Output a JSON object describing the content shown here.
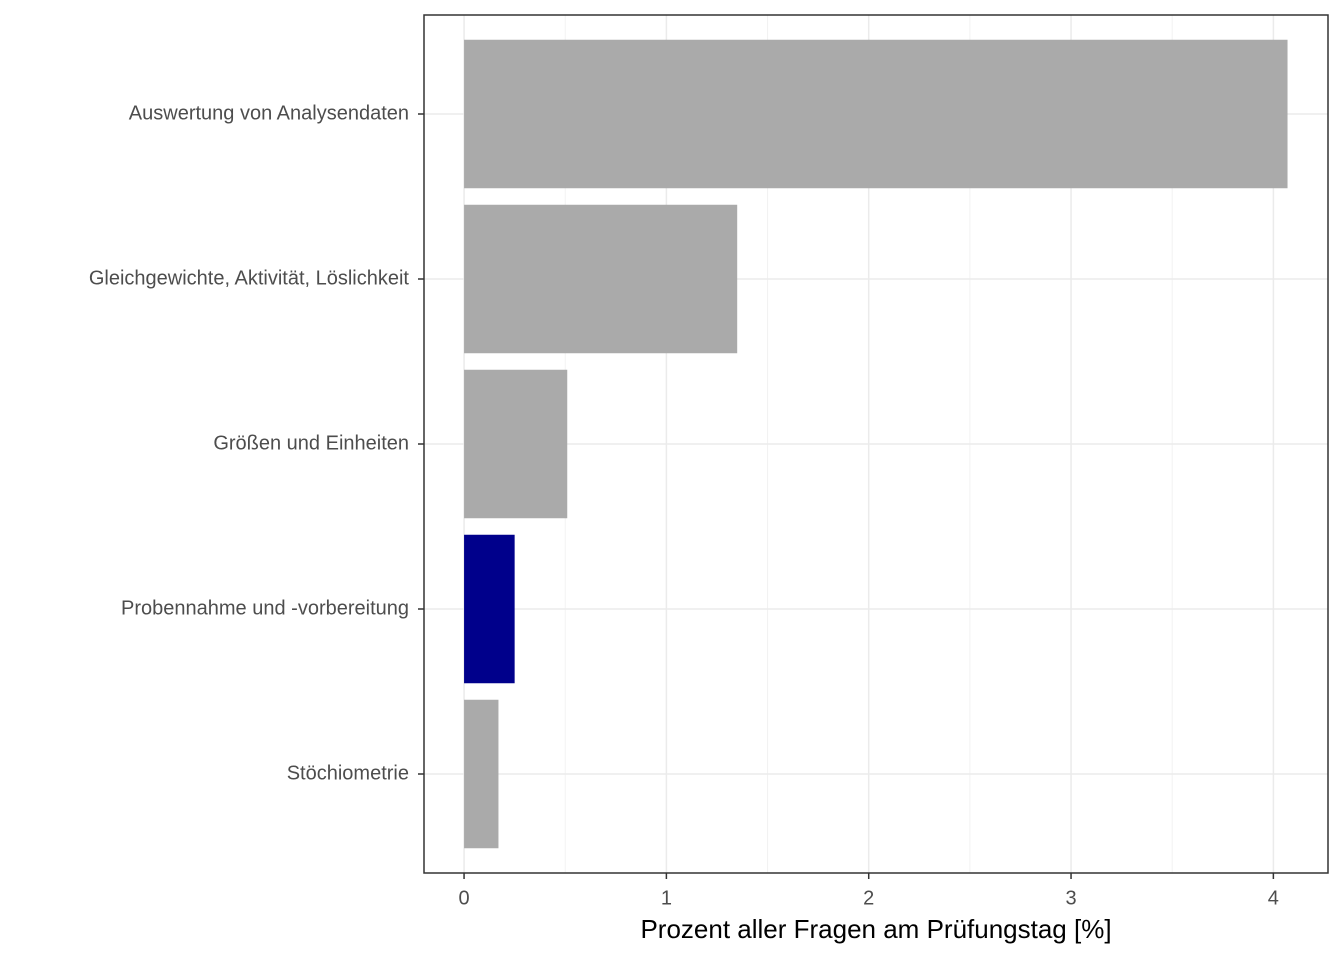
{
  "chart_data": {
    "type": "barh",
    "categories": [
      "Auswertung von Analysendaten",
      "Gleichgewichte, Aktivität, Löslichkeit",
      "Größen und Einheiten",
      "Probennahme und -vorbereitung",
      "Stöchiometrie"
    ],
    "values": [
      4.07,
      1.35,
      0.51,
      0.25,
      0.17
    ],
    "colors": [
      "#aaaaaa",
      "#aaaaaa",
      "#aaaaaa",
      "#00008b",
      "#aaaaaa"
    ],
    "xlabel": "Prozent aller Fragen am Prüfungstag [%]",
    "xlim": [
      -0.198,
      4.27
    ],
    "xticks": [
      0,
      1,
      2,
      3,
      4
    ],
    "grid": true
  }
}
